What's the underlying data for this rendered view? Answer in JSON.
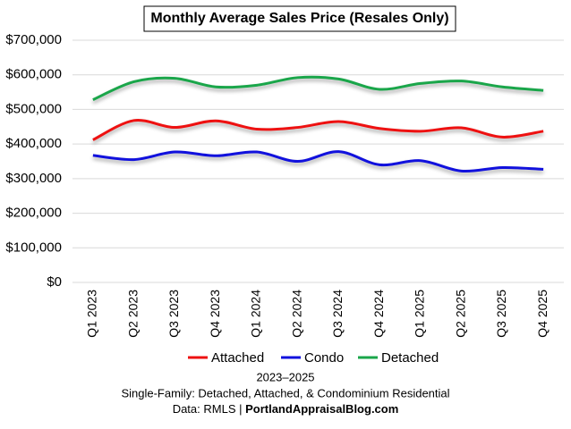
{
  "chart_data": {
    "type": "line",
    "title": "Monthly Average Sales Price (Resales Only)",
    "categories": [
      "Q1 2023",
      "Q2 2023",
      "Q3 2023",
      "Q4 2023",
      "Q1 2024",
      "Q2 2024",
      "Q3 2024",
      "Q4 2024",
      "Q1 2025",
      "Q2 2025",
      "Q3 2025",
      "Q4 2025"
    ],
    "series": [
      {
        "name": "Attached",
        "color": "#ee1111",
        "values": [
          412000,
          468000,
          448000,
          467000,
          443000,
          448000,
          465000,
          445000,
          437000,
          447000,
          420000,
          437000
        ]
      },
      {
        "name": "Condo",
        "color": "#1111dd",
        "values": [
          367000,
          355000,
          377000,
          366000,
          377000,
          350000,
          378000,
          340000,
          352000,
          322000,
          332000,
          327000
        ]
      },
      {
        "name": "Detached",
        "color": "#1aa64a",
        "values": [
          528000,
          580000,
          590000,
          565000,
          570000,
          592000,
          588000,
          558000,
          575000,
          582000,
          565000,
          555000
        ]
      }
    ],
    "ylim": [
      0,
      700000
    ],
    "yticks": [
      {
        "value": 0,
        "label": "$0"
      },
      {
        "value": 100000,
        "label": "$100,000"
      },
      {
        "value": 200000,
        "label": "$200,000"
      },
      {
        "value": 300000,
        "label": "$300,000"
      },
      {
        "value": 400000,
        "label": "$400,000"
      },
      {
        "value": 500000,
        "label": "$500,000"
      },
      {
        "value": 600000,
        "label": "$600,000"
      },
      {
        "value": 700000,
        "label": "$700,000"
      }
    ],
    "grid": true,
    "legend": "bottom",
    "footer": {
      "line1": "2023–2025",
      "line2": "Single-Family: Detached, Attached, & Condominium Residential",
      "source_label": "Data: RMLS | ",
      "source_site": "PortlandAppraisalBlog.com"
    }
  }
}
